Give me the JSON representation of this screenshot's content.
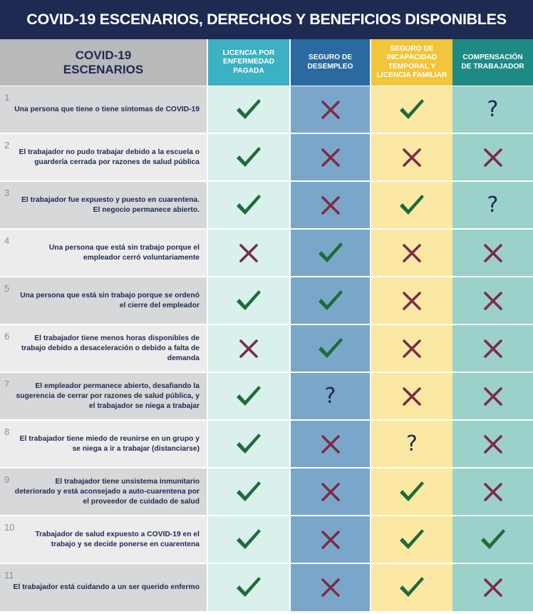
{
  "title": "COVID-19 ESCENARIOS, DERECHOS Y BENEFICIOS DISPONIBLES",
  "header": {
    "scenarios_line1": "COVID-19",
    "scenarios_line2": "ESCENARIOS",
    "columns": [
      {
        "label": "LICENCIA POR ENFERMEDAD PAGADA",
        "color": "#3bb1c3"
      },
      {
        "label": "SEGURO DE DESEMPLEO",
        "color": "#2a6aa0"
      },
      {
        "label": "SEGURO DE INCAPACIDAD TEMPORAL Y LICENCIA FAMILIAR",
        "color": "#f2c53b"
      },
      {
        "label": "COMPENSACIÓN DE TRABAJADOR",
        "color": "#1e8a84"
      }
    ]
  },
  "mark_colors": {
    "check": "#1f6b3a",
    "cross": "#7c2c48",
    "question": "#1e2a52"
  },
  "rows": [
    {
      "num": "1",
      "text": "Una persona que tiene o tiene síntomas de COVID-19",
      "marks": [
        "check",
        "cross",
        "check",
        "question"
      ]
    },
    {
      "num": "2",
      "text": "El trabajador no pudo trabajar debido a la escuela o guardería cerrada por razones de salud pública",
      "marks": [
        "check",
        "cross",
        "cross",
        "cross"
      ]
    },
    {
      "num": "3",
      "text": "El trabajador fue expuesto y puesto en cuarentena. El negocio permanece abierto.",
      "marks": [
        "check",
        "cross",
        "check",
        "question"
      ]
    },
    {
      "num": "4",
      "text": "Una persona que está sin trabajo porque el empleador cerró voluntariamente",
      "marks": [
        "cross",
        "check",
        "cross",
        "cross"
      ]
    },
    {
      "num": "5",
      "text": "Una persona que está sin trabajo porque se ordenó el cierre del empleador",
      "marks": [
        "check",
        "check",
        "cross",
        "cross"
      ]
    },
    {
      "num": "6",
      "text": "El trabajador tiene menos horas disponibles de trabajo debido a desaceleración o debido a falta de demanda",
      "marks": [
        "cross",
        "check",
        "cross",
        "cross"
      ]
    },
    {
      "num": "7",
      "text": "El empleador permanece abierto, desafiando la sugerencia de cerrar por razones de salud pública, y el trabajador se niega a trabajar",
      "marks": [
        "check",
        "question",
        "cross",
        "cross"
      ]
    },
    {
      "num": "8",
      "text": "El trabajador tiene miedo de reunirse en un grupo y se niega a ir a trabajar (distanciarse)",
      "marks": [
        "check",
        "cross",
        "question",
        "cross"
      ]
    },
    {
      "num": "9",
      "text": "El trabajador tiene unsistema inmunitario deteriorado y está aconsejado a auto-cuarentena por el proveedor de cuidado de salud",
      "marks": [
        "check",
        "cross",
        "check",
        "cross"
      ]
    },
    {
      "num": "10",
      "text": "Trabajador de salud expuesto a COVID-19 en el trabajo y se decide ponerse en cuarentena",
      "marks": [
        "check",
        "cross",
        "check",
        "check"
      ]
    },
    {
      "num": "11",
      "text": "El trabajador está cuidando a un ser querido enfermo",
      "marks": [
        "check",
        "cross",
        "check",
        "cross"
      ]
    }
  ]
}
